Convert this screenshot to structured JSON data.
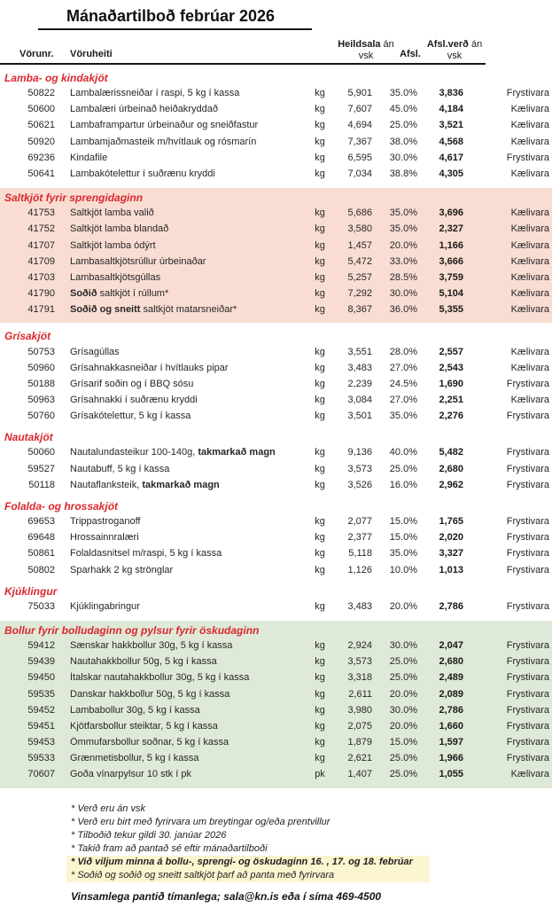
{
  "page": {
    "title": "Mánaðartilboð febrúar 2026"
  },
  "colors": {
    "accent_red": "#d9282e",
    "section_pink": "#f9ddd2",
    "section_green": "#dfe9d8",
    "highlight_yellow": "#fbf6d0",
    "rule_black": "#161616"
  },
  "table": {
    "columns": {
      "vorunr": "Vörunr.",
      "voruheiti": "Vöruheiti",
      "heildsala_bold": "Heildsala",
      "heildsala_rest": " án",
      "heildsala_line2": "vsk",
      "afsl": "Afsl.",
      "afslverd_bold": "Afsl.verð",
      "afslverd_rest": " án",
      "afslverd_line2": "vsk"
    },
    "sections": [
      {
        "header": "Lamba- og kindakjöt",
        "bg": "none",
        "rows": [
          {
            "id": "50822",
            "name": [
              {
                "t": "Lambalærissneiðar í raspi, 5 kg í kassa"
              }
            ],
            "unit": "kg",
            "price": "5,901",
            "discount": "35.0%",
            "net": "3,836",
            "storage": "Frystivara"
          },
          {
            "id": "50600",
            "name": [
              {
                "t": "Lambalæri úrbeinað heiðakryddað"
              }
            ],
            "unit": "kg",
            "price": "7,607",
            "discount": "45.0%",
            "net": "4,184",
            "storage": "Kælivara"
          },
          {
            "id": "50621",
            "name": [
              {
                "t": "Lambaframpartur úrbeinaður og sneiðfastur"
              }
            ],
            "unit": "kg",
            "price": "4,694",
            "discount": "25.0%",
            "net": "3,521",
            "storage": "Kælivara"
          },
          {
            "id": "50920",
            "name": [
              {
                "t": "Lambamjaðmasteik m/hvítlauk og rósmarín"
              }
            ],
            "unit": "kg",
            "price": "7,367",
            "discount": "38.0%",
            "net": "4,568",
            "storage": "Kælivara"
          },
          {
            "id": "69236",
            "name": [
              {
                "t": "Kindafile"
              }
            ],
            "unit": "kg",
            "price": "6,595",
            "discount": "30.0%",
            "net": "4,617",
            "storage": "Frystivara"
          },
          {
            "id": "50641",
            "name": [
              {
                "t": "Lambakótelettur í suðrænu kryddi"
              }
            ],
            "unit": "kg",
            "price": "7,034",
            "discount": "38.8%",
            "net": "4,305",
            "storage": "Kælivara"
          }
        ]
      },
      {
        "header": "Saltkjöt fyrir sprengidaginn",
        "bg": "pink",
        "rows": [
          {
            "id": "41753",
            "name": [
              {
                "t": "Saltkjöt lamba valið"
              }
            ],
            "unit": "kg",
            "price": "5,686",
            "discount": "35.0%",
            "net": "3,696",
            "storage": "Kælivara"
          },
          {
            "id": "41752",
            "name": [
              {
                "t": "Saltkjöt lamba blandað"
              }
            ],
            "unit": "kg",
            "price": "3,580",
            "discount": "35.0%",
            "net": "2,327",
            "storage": "Kælivara"
          },
          {
            "id": "41707",
            "name": [
              {
                "t": "Saltkjöt lamba ódýrt"
              }
            ],
            "unit": "kg",
            "price": "1,457",
            "discount": "20.0%",
            "net": "1,166",
            "storage": "Kælivara"
          },
          {
            "id": "41709",
            "name": [
              {
                "t": "Lambasaltkjötsrúllur úrbeinaðar"
              }
            ],
            "unit": "kg",
            "price": "5,472",
            "discount": "33.0%",
            "net": "3,666",
            "storage": "Kælivara"
          },
          {
            "id": "41703",
            "name": [
              {
                "t": "Lambasaltkjötsgúllas"
              }
            ],
            "unit": "kg",
            "price": "5,257",
            "discount": "28.5%",
            "net": "3,759",
            "storage": "Kælivara"
          },
          {
            "id": "41790",
            "name": [
              {
                "t": "Soðið",
                "b": true
              },
              {
                "t": " saltkjöt í rúllum*"
              }
            ],
            "unit": "kg",
            "price": "7,292",
            "discount": "30.0%",
            "net": "5,104",
            "storage": "Kælivara"
          },
          {
            "id": "41791",
            "name": [
              {
                "t": "Soðið og sneitt",
                "b": true
              },
              {
                "t": " saltkjöt matarsneiðar*"
              }
            ],
            "unit": "kg",
            "price": "8,367",
            "discount": "36.0%",
            "net": "5,355",
            "storage": "Kælivara"
          }
        ]
      },
      {
        "header": "Grísakjöt",
        "bg": "none",
        "rows": [
          {
            "id": "50753",
            "name": [
              {
                "t": "Grísagúllas"
              }
            ],
            "unit": "kg",
            "price": "3,551",
            "discount": "28.0%",
            "net": "2,557",
            "storage": "Kælivara"
          },
          {
            "id": "50960",
            "name": [
              {
                "t": "Grísahnakkasneiðar í hvítlauks pipar"
              }
            ],
            "unit": "kg",
            "price": "3,483",
            "discount": "27.0%",
            "net": "2,543",
            "storage": "Kælivara"
          },
          {
            "id": "50188",
            "name": [
              {
                "t": "Grísarif soðin og í BBQ sósu"
              }
            ],
            "unit": "kg",
            "price": "2,239",
            "discount": "24.5%",
            "net": "1,690",
            "storage": "Frystivara"
          },
          {
            "id": "50963",
            "name": [
              {
                "t": "Grísahnakki í suðrænu kryddi"
              }
            ],
            "unit": "kg",
            "price": "3,084",
            "discount": "27.0%",
            "net": "2,251",
            "storage": "Kælivara"
          },
          {
            "id": "50760",
            "name": [
              {
                "t": "Grísakótelettur, 5 kg í kassa"
              }
            ],
            "unit": "kg",
            "price": "3,501",
            "discount": "35.0%",
            "net": "2,276",
            "storage": "Frystivara"
          }
        ]
      },
      {
        "header": "Nautakjöt",
        "bg": "none",
        "rows": [
          {
            "id": "50060",
            "name": [
              {
                "t": "Nautalundasteikur 100-140g, "
              },
              {
                "t": "takmarkað magn",
                "b": true
              }
            ],
            "unit": "kg",
            "price": "9,136",
            "discount": "40.0%",
            "net": "5,482",
            "storage": "Frystivara"
          },
          {
            "id": "59527",
            "name": [
              {
                "t": "Nautabuff, 5 kg í kassa"
              }
            ],
            "unit": "kg",
            "price": "3,573",
            "discount": "25.0%",
            "net": "2,680",
            "storage": "Frystivara"
          },
          {
            "id": "50118",
            "name": [
              {
                "t": "Nautaflanksteik, "
              },
              {
                "t": "takmarkað magn",
                "b": true
              }
            ],
            "unit": "kg",
            "price": "3,526",
            "discount": "16.0%",
            "net": "2,962",
            "storage": "Frystivara"
          }
        ]
      },
      {
        "header": "Folalda- og hrossakjöt",
        "bg": "none",
        "rows": [
          {
            "id": "69653",
            "name": [
              {
                "t": "Trippastroganoff"
              }
            ],
            "unit": "kg",
            "price": "2,077",
            "discount": "15.0%",
            "net": "1,765",
            "storage": "Frystivara"
          },
          {
            "id": "69648",
            "name": [
              {
                "t": "Hrossainnralæri"
              }
            ],
            "unit": "kg",
            "price": "2,377",
            "discount": "15.0%",
            "net": "2,020",
            "storage": "Frystivara"
          },
          {
            "id": "50861",
            "name": [
              {
                "t": "Folaldasnitsel m/raspi, 5 kg í kassa"
              }
            ],
            "unit": "kg",
            "price": "5,118",
            "discount": "35.0%",
            "net": "3,327",
            "storage": "Frystivara"
          },
          {
            "id": "50802",
            "name": [
              {
                "t": "Sparhakk 2 kg strönglar"
              }
            ],
            "unit": "kg",
            "price": "1,126",
            "discount": "10.0%",
            "net": "1,013",
            "storage": "Frystivara"
          }
        ]
      },
      {
        "header": "Kjúklingur",
        "bg": "none",
        "rows": [
          {
            "id": "75033",
            "name": [
              {
                "t": "Kjúklingabringur"
              }
            ],
            "unit": "kg",
            "price": "3,483",
            "discount": "20.0%",
            "net": "2,786",
            "storage": "Frystivara"
          }
        ]
      },
      {
        "header": "Bollur fyrir bolludaginn og pylsur fyrir öskudaginn",
        "bg": "green",
        "rows": [
          {
            "id": "59412",
            "name": [
              {
                "t": "Sænskar hakkbollur 30g, 5 kg í kassa"
              }
            ],
            "unit": "kg",
            "price": "2,924",
            "discount": "30.0%",
            "net": "2,047",
            "storage": "Frystivara"
          },
          {
            "id": "59439",
            "name": [
              {
                "t": "Nautahakkbollur 50g, 5 kg í kassa"
              }
            ],
            "unit": "kg",
            "price": "3,573",
            "discount": "25.0%",
            "net": "2,680",
            "storage": "Frystivara"
          },
          {
            "id": "59450",
            "name": [
              {
                "t": "Ítalskar nautahakkbollur 30g, 5 kg í kassa"
              }
            ],
            "unit": "kg",
            "price": "3,318",
            "discount": "25.0%",
            "net": "2,489",
            "storage": "Frystivara"
          },
          {
            "id": "59535",
            "name": [
              {
                "t": "Danskar hakkbollur 50g, 5 kg í kassa"
              }
            ],
            "unit": "kg",
            "price": "2,611",
            "discount": "20.0%",
            "net": "2,089",
            "storage": "Frystivara"
          },
          {
            "id": "59452",
            "name": [
              {
                "t": "Lambabollur 30g, 5 kg í kassa"
              }
            ],
            "unit": "kg",
            "price": "3,980",
            "discount": "30.0%",
            "net": "2,786",
            "storage": "Frystivara"
          },
          {
            "id": "59451",
            "name": [
              {
                "t": "Kjötfarsbollur steiktar, 5 kg í kassa"
              }
            ],
            "unit": "kg",
            "price": "2,075",
            "discount": "20.0%",
            "net": "1,660",
            "storage": "Frystivara"
          },
          {
            "id": "59453",
            "name": [
              {
                "t": "Ömmufarsbollur soðnar, 5 kg í kassa"
              }
            ],
            "unit": "kg",
            "price": "1,879",
            "discount": "15.0%",
            "net": "1,597",
            "storage": "Frystivara"
          },
          {
            "id": "59533",
            "name": [
              {
                "t": "Grænmetisbollur, 5 kg í kassa"
              }
            ],
            "unit": "kg",
            "price": "2,621",
            "discount": "25.0%",
            "net": "1,966",
            "storage": "Frystivara"
          },
          {
            "id": "70607",
            "name": [
              {
                "t": "Goða vínarpylsur 10 stk í pk"
              }
            ],
            "unit": "pk",
            "price": "1,407",
            "discount": "25.0%",
            "net": "1,055",
            "storage": "Kælivara"
          }
        ]
      }
    ]
  },
  "footnotes": [
    {
      "text": "* Verð eru án vsk",
      "bold": false,
      "highlight": false
    },
    {
      "text": "* Verð eru birt með fyrirvara um breytingar og/eða prentvillur",
      "bold": false,
      "highlight": false
    },
    {
      "text": "* Tilboðið tekur gildi 30. janúar 2026",
      "bold": false,
      "highlight": false
    },
    {
      "text": "* Takið fram að pantað sé eftir mánaðartilboði",
      "bold": false,
      "highlight": false
    },
    {
      "text": "* Við viljum minna á bollu-, sprengi- og öskudaginn 16. , 17. og 18. febrúar",
      "bold": true,
      "highlight": true
    },
    {
      "text": "* Soðið og soðið og sneitt saltkjöt þarf að panta með fyrirvara",
      "bold": false,
      "highlight": true
    }
  ],
  "closing": "Vinsamlega pantið tímanlega; sala@kn.is eða í síma 469-4500"
}
